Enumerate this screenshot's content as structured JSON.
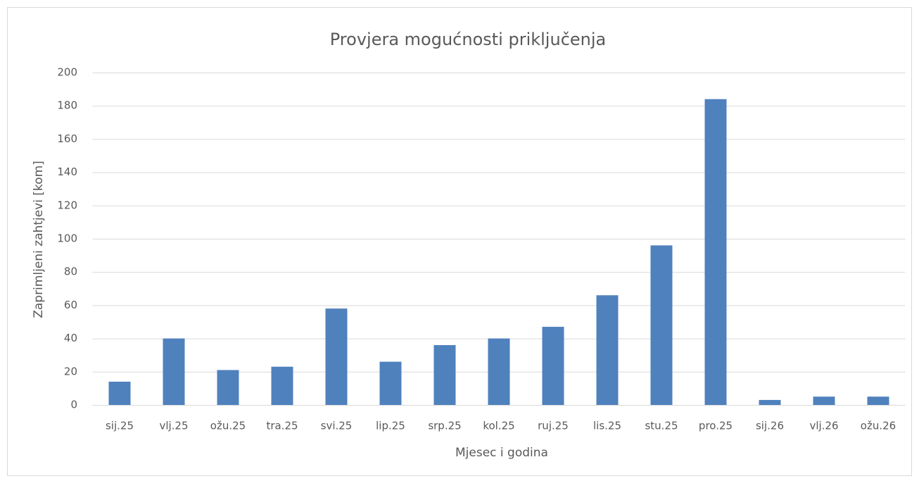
{
  "chart_data": {
    "type": "bar",
    "title": "Provjera mogućnosti priključenja",
    "x_label": "Mjesec i godina",
    "y_label": "Zaprimljeni zahtjevi [kom]",
    "categories": [
      "sij.25",
      "vlj.25",
      "ožu.25",
      "tra.25",
      "svi.25",
      "lip.25",
      "srp.25",
      "kol.25",
      "ruj.25",
      "lis.25",
      "stu.25",
      "pro.25",
      "sij.26",
      "vlj.26",
      "ožu.26"
    ],
    "values": [
      14,
      40,
      21,
      23,
      58,
      26,
      36,
      40,
      47,
      66,
      96,
      184,
      3,
      5,
      5
    ],
    "color": "#4f81bd",
    "ylim": [
      0,
      200
    ],
    "yticks": [
      0,
      20,
      40,
      60,
      80,
      100,
      120,
      140,
      160,
      180,
      200
    ],
    "grid": true
  }
}
